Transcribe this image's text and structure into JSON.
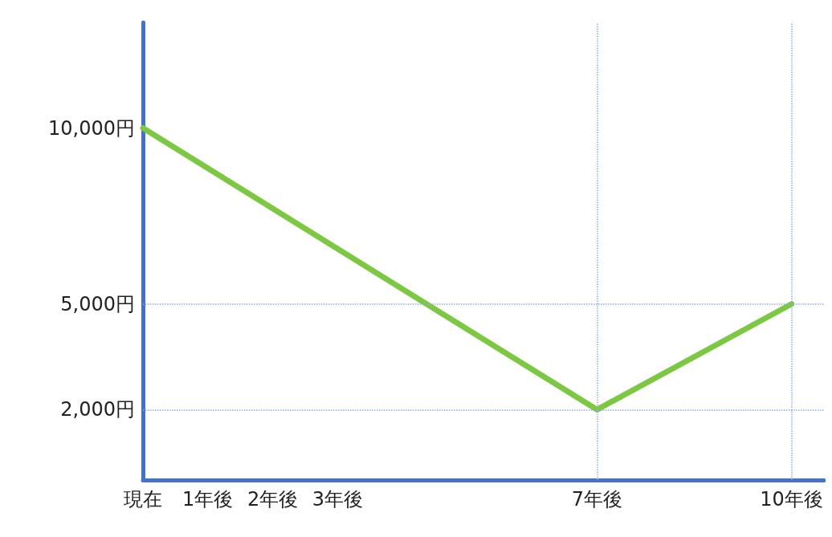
{
  "chart_data": {
    "type": "line",
    "x": [
      0,
      7,
      10
    ],
    "series": [
      {
        "color": "#7dc843",
        "values": [
          10000,
          2000,
          5000
        ]
      }
    ],
    "xlim": [
      0,
      10.5
    ],
    "xticks": [
      {
        "value": 0,
        "label": "現在"
      },
      {
        "value": 1,
        "label": "1年後"
      },
      {
        "value": 2,
        "label": "2年後"
      },
      {
        "value": 3,
        "label": "3年後"
      },
      {
        "value": 7,
        "label": "7年後"
      },
      {
        "value": 10,
        "label": "10年後"
      }
    ],
    "ylim": [
      0,
      13000
    ],
    "yticks": [
      {
        "value": 2000,
        "label": "2,000円"
      },
      {
        "value": 5000,
        "label": "5,000円"
      },
      {
        "value": 10000,
        "label": "10,000円"
      }
    ],
    "ref_lines": [
      {
        "axis": "y",
        "value": 5000,
        "label": null,
        "color": "#8eaadb",
        "line_style": "dotted"
      },
      {
        "axis": "y",
        "value": 2000,
        "label": null,
        "color": "#8eaadb",
        "line_style": "dotted"
      },
      {
        "axis": "x",
        "value": 7,
        "label": null,
        "color": "#8eaadb",
        "line_style": "dotted"
      },
      {
        "axis": "x",
        "value": 10,
        "label": null,
        "color": "#8eaadb",
        "line_style": "dotted"
      }
    ],
    "grid": false,
    "marker": "none",
    "line_style": "solid"
  }
}
